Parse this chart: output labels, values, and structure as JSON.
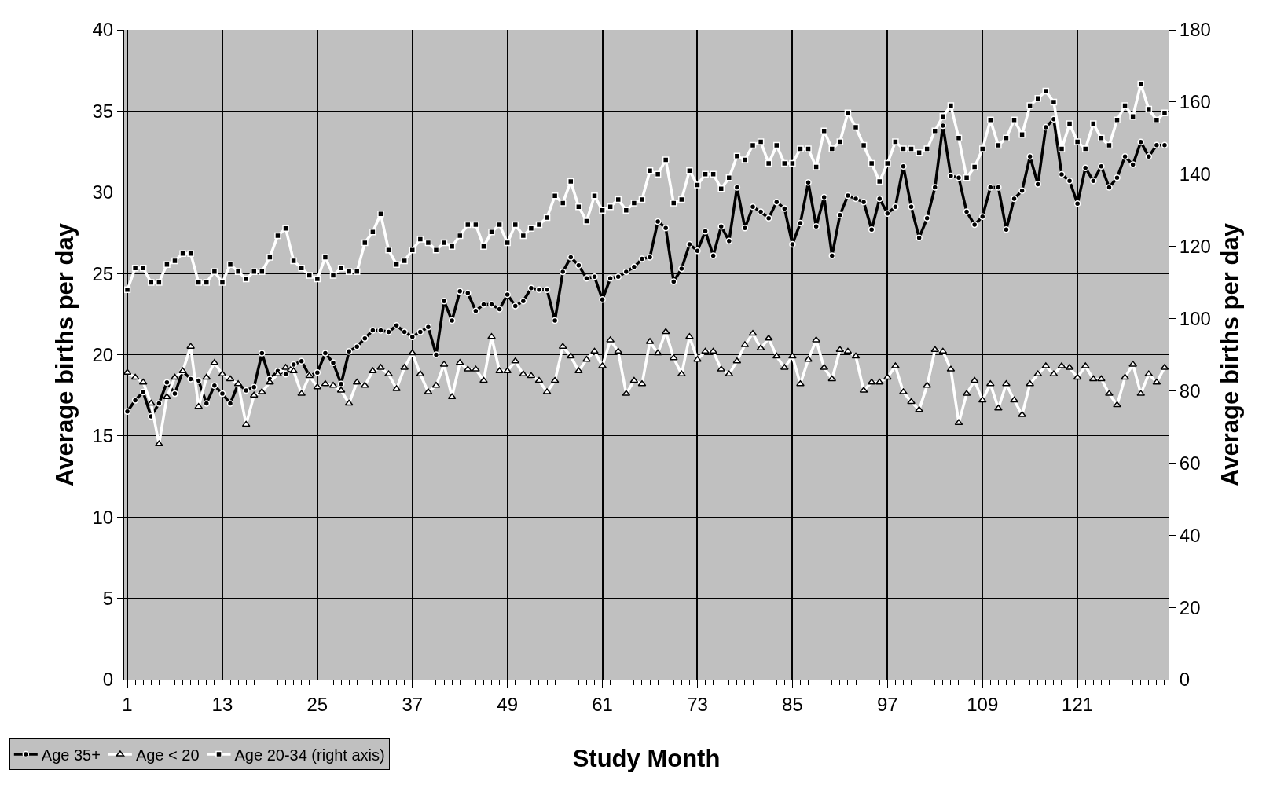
{
  "chart_data": {
    "type": "line",
    "categories": [
      "1",
      null,
      null,
      null,
      null,
      null,
      null,
      null,
      null,
      null,
      null,
      null,
      "13",
      null,
      null,
      null,
      null,
      null,
      null,
      null,
      null,
      null,
      null,
      null,
      "25",
      null,
      null,
      null,
      null,
      null,
      null,
      null,
      null,
      null,
      null,
      null,
      "37",
      null,
      null,
      null,
      null,
      null,
      null,
      null,
      null,
      null,
      null,
      null,
      "49",
      null,
      null,
      null,
      null,
      null,
      null,
      null,
      null,
      null,
      null,
      null,
      "61",
      null,
      null,
      null,
      null,
      null,
      null,
      null,
      null,
      null,
      null,
      null,
      "73",
      null,
      null,
      null,
      null,
      null,
      null,
      null,
      null,
      null,
      null,
      null,
      "85",
      null,
      null,
      null,
      null,
      null,
      null,
      null,
      null,
      null,
      null,
      null,
      "97",
      null,
      null,
      null,
      null,
      null,
      null,
      null,
      null,
      null,
      null,
      null,
      "109",
      null,
      null,
      null,
      null,
      null,
      null,
      null,
      null,
      null,
      null,
      null,
      "121",
      null,
      null,
      null,
      null,
      null,
      null,
      null,
      null,
      null,
      null,
      null
    ],
    "xlabel": "Study Month",
    "ylabel": "Average births per day",
    "y2label": "Average births per day",
    "ylim": [
      0,
      40
    ],
    "yticks": [
      0,
      5,
      10,
      15,
      20,
      25,
      30,
      35,
      40
    ],
    "y2lim": [
      0,
      180
    ],
    "y2ticks": [
      0,
      20,
      40,
      60,
      80,
      100,
      120,
      140,
      160,
      180
    ],
    "grid": true,
    "legend": "bottom left",
    "series": [
      {
        "name": "Age 35+",
        "color": "#000000",
        "marker": "circle",
        "values": [
          16.5,
          17.2,
          17.7,
          16.2,
          17.0,
          18.3,
          17.6,
          19.0,
          18.5,
          18.4,
          17.0,
          18.1,
          17.6,
          17.0,
          18.2,
          17.8,
          18.0,
          20.1,
          18.5,
          19.0,
          18.8,
          19.4,
          19.6,
          18.7,
          18.9,
          20.1,
          19.5,
          18.2,
          20.2,
          20.5,
          21.0,
          21.5,
          21.5,
          21.4,
          21.8,
          21.4,
          21.1,
          21.4,
          21.7,
          20.0,
          23.3,
          22.1,
          23.9,
          23.8,
          22.7,
          23.1,
          23.1,
          22.8,
          23.7,
          23.0,
          23.3,
          24.1,
          24.0,
          24.0,
          22.1,
          25.1,
          26.0,
          25.5,
          24.7,
          24.8,
          23.4,
          24.7,
          24.8,
          25.1,
          25.4,
          25.9,
          26.0,
          28.2,
          27.8,
          24.5,
          25.3,
          26.8,
          26.4,
          27.6,
          26.1,
          27.9,
          27.0,
          30.3,
          27.8,
          29.1,
          28.8,
          28.4,
          29.4,
          29.0,
          26.8,
          28.1,
          30.6,
          27.9,
          29.7,
          26.1,
          28.6,
          29.8,
          29.6,
          29.4,
          27.7,
          29.6,
          28.7,
          29.1,
          31.6,
          29.1,
          27.2,
          28.4,
          30.3,
          34.1,
          31.0,
          30.9,
          28.8,
          28.0,
          28.5,
          30.3,
          30.3,
          27.7,
          29.6,
          30.1,
          32.2,
          30.5,
          34.0,
          34.5,
          31.1,
          30.7,
          29.3,
          31.5,
          30.7,
          31.6,
          30.3,
          30.9,
          32.2,
          31.7,
          33.1,
          32.2,
          32.9,
          32.9
        ]
      },
      {
        "name": "Age < 20",
        "color": "#ffffff",
        "marker": "triangle",
        "values": [
          18.9,
          18.6,
          18.3,
          17.0,
          14.5,
          17.4,
          18.6,
          19.0,
          20.5,
          16.8,
          18.6,
          19.5,
          18.8,
          18.5,
          18.2,
          15.7,
          17.5,
          17.7,
          18.3,
          18.8,
          19.2,
          19.0,
          17.6,
          18.7,
          18.0,
          18.2,
          18.1,
          17.8,
          17.0,
          18.3,
          18.1,
          19.0,
          19.2,
          18.8,
          17.9,
          19.2,
          20.1,
          18.8,
          17.7,
          18.1,
          19.4,
          17.4,
          19.5,
          19.1,
          19.1,
          18.4,
          21.1,
          19.0,
          19.0,
          19.6,
          18.8,
          18.7,
          18.4,
          17.7,
          18.4,
          20.5,
          19.9,
          19.0,
          19.7,
          20.2,
          19.3,
          20.9,
          20.2,
          17.6,
          18.4,
          18.2,
          20.8,
          20.1,
          21.4,
          19.8,
          18.8,
          21.1,
          19.7,
          20.2,
          20.2,
          19.1,
          18.8,
          19.6,
          20.6,
          21.3,
          20.4,
          21.0,
          19.9,
          19.2,
          19.9,
          18.2,
          19.7,
          20.9,
          19.2,
          18.5,
          20.3,
          20.2,
          19.9,
          17.8,
          18.3,
          18.3,
          18.6,
          19.3,
          17.7,
          17.1,
          16.6,
          18.1,
          20.3,
          20.2,
          19.1,
          15.8,
          17.6,
          18.4,
          17.2,
          18.2,
          16.7,
          18.2,
          17.2,
          16.3,
          18.2,
          18.8,
          19.3,
          18.8,
          19.3,
          19.2,
          18.6,
          19.3,
          18.5,
          18.5,
          17.6,
          16.9,
          18.6,
          19.4,
          17.6,
          18.8,
          18.3,
          19.2
        ]
      },
      {
        "name": "Age 20-34 (right axis)",
        "color": "#ffffff",
        "marker": "square",
        "axis": "y2",
        "values": [
          108,
          114,
          114,
          110,
          110,
          115,
          116,
          118,
          118,
          110,
          110,
          113,
          110,
          115,
          113,
          111,
          113,
          113,
          117,
          123,
          125,
          116,
          114,
          112,
          111,
          117,
          112,
          114,
          113,
          113,
          121,
          124,
          129,
          119,
          115,
          116,
          119,
          122,
          121,
          119,
          121,
          120,
          123,
          126,
          126,
          120,
          124,
          126,
          121,
          126,
          123,
          125,
          126,
          128,
          134,
          132,
          138,
          131,
          127,
          134,
          130,
          131,
          133,
          130,
          132,
          133,
          141,
          140,
          144,
          132,
          133,
          141,
          137,
          140,
          140,
          136,
          139,
          145,
          144,
          148,
          149,
          143,
          148,
          143,
          143,
          147,
          147,
          142,
          152,
          147,
          149,
          157,
          153,
          148,
          143,
          138,
          143,
          149,
          147,
          147,
          146,
          147,
          152,
          156,
          159,
          150,
          139,
          142,
          147,
          155,
          148,
          150,
          155,
          151,
          159,
          161,
          163,
          160,
          147,
          154,
          149,
          147,
          154,
          150,
          148,
          155,
          159,
          156,
          165,
          158,
          155,
          157
        ]
      }
    ]
  }
}
